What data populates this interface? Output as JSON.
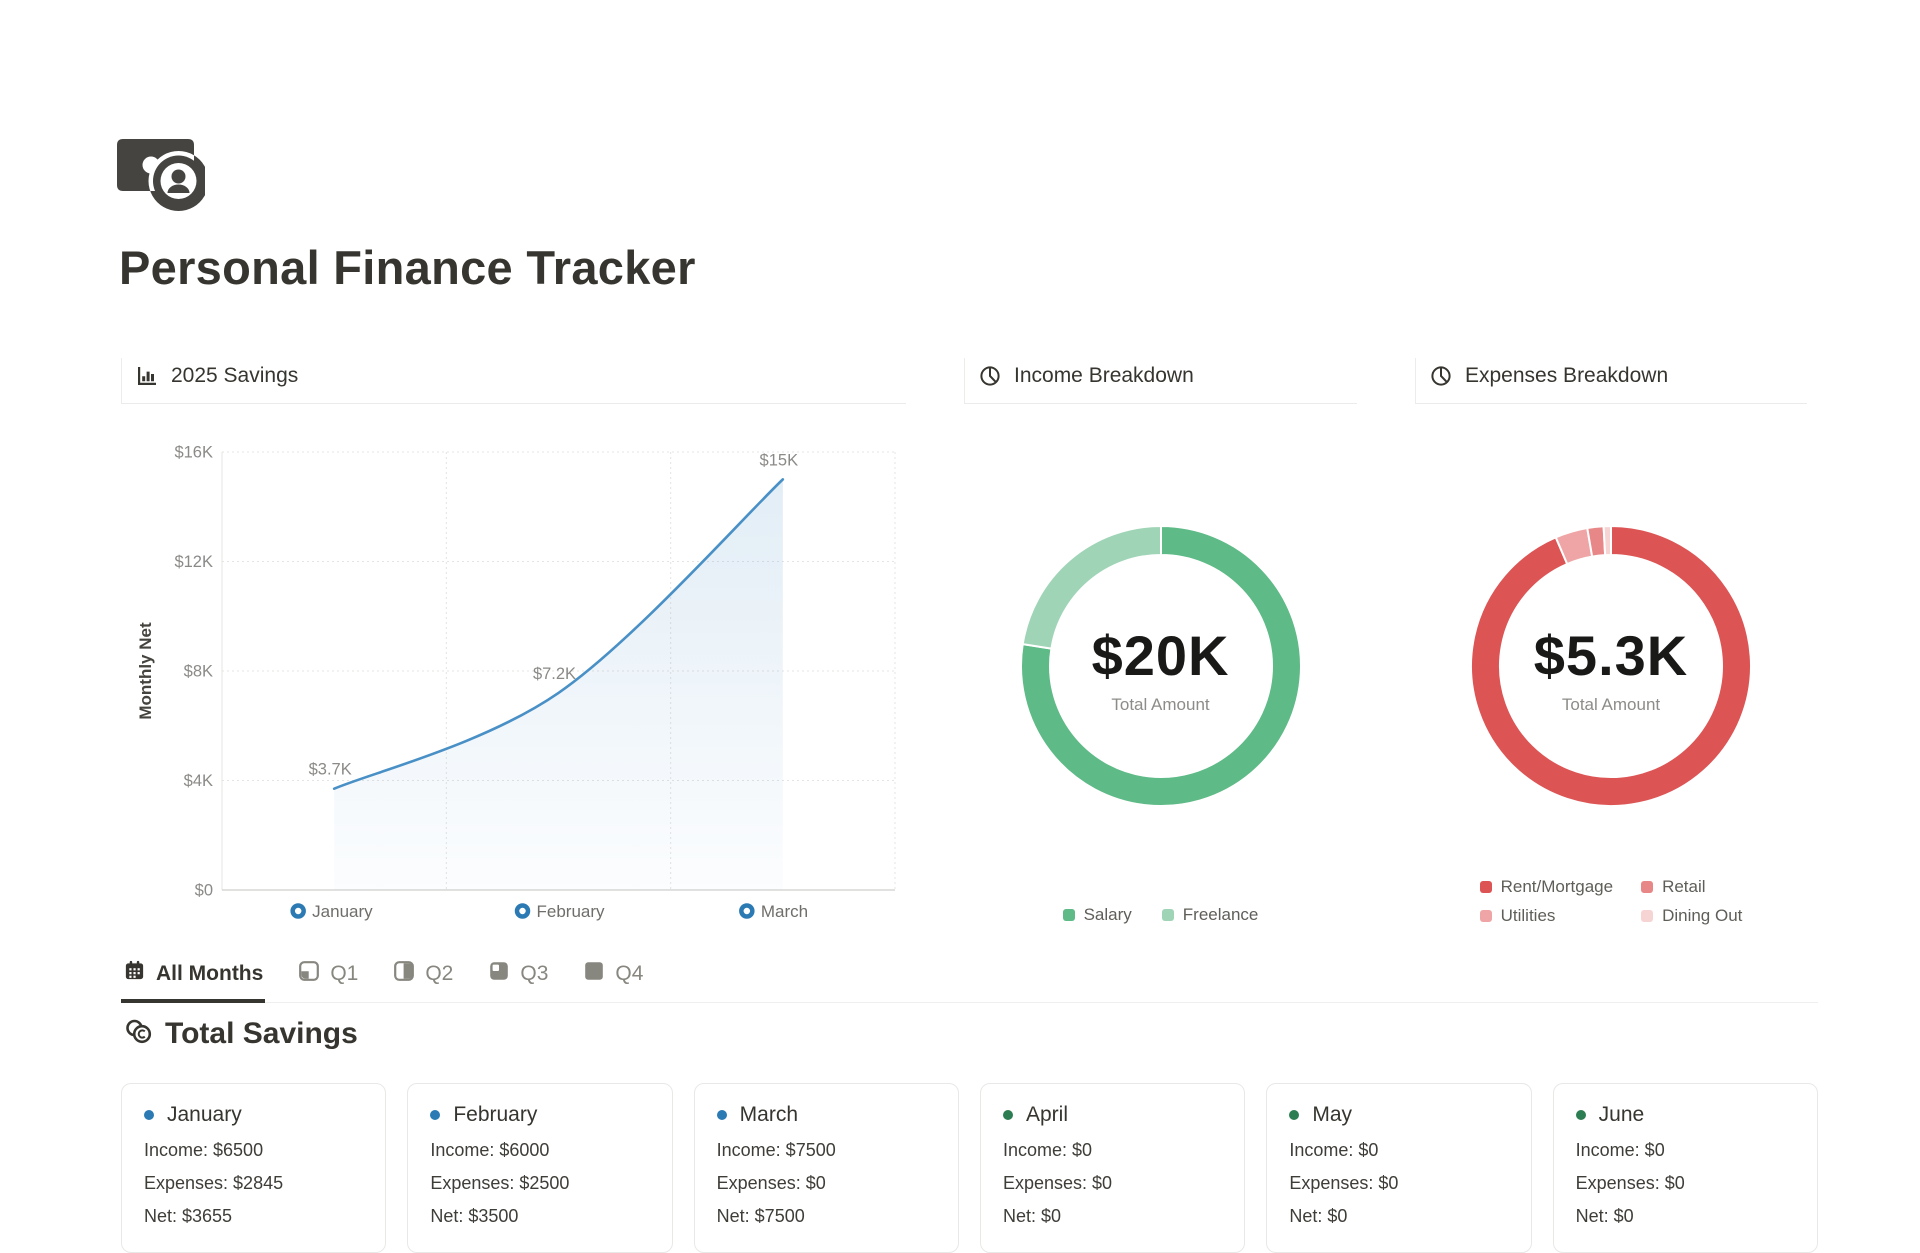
{
  "page": {
    "title": "Personal Finance Tracker",
    "icon": "money-coin-icon"
  },
  "panels": {
    "savings": {
      "title": "2025 Savings",
      "icon": "bar-chart-icon"
    },
    "income": {
      "title": "Income Breakdown",
      "icon": "pie-chart-icon"
    },
    "expenses": {
      "title": "Expenses Breakdown",
      "icon": "pie-chart-icon"
    }
  },
  "chart_data": [
    {
      "type": "line",
      "title": "2025 Savings",
      "ylabel": "Monthly Net",
      "categories": [
        "January",
        "February",
        "March"
      ],
      "values": [
        3700,
        7200,
        15000
      ],
      "point_labels": [
        "$3.7K",
        "$7.2K",
        "$15K"
      ],
      "y_ticks": [
        {
          "value": 16000,
          "label": "$16K"
        },
        {
          "value": 12000,
          "label": "$12K"
        },
        {
          "value": 8000,
          "label": "$8K"
        },
        {
          "value": 4000,
          "label": "$4K"
        },
        {
          "value": 0,
          "label": "$0"
        }
      ],
      "ylim": [
        0,
        16000
      ],
      "grid": "dotted",
      "legend_position": "none",
      "line_color": "#4990c6",
      "marker_color": "#2b7ab3"
    },
    {
      "type": "donut",
      "title": "Income Breakdown",
      "center_value": "$20K",
      "center_label": "Total Amount",
      "legend_position": "bottom",
      "series": [
        {
          "name": "Salary",
          "value": 15500,
          "color": "#5eba86"
        },
        {
          "name": "Freelance",
          "value": 4500,
          "color": "#9fd4b6"
        }
      ]
    },
    {
      "type": "donut",
      "title": "Expenses Breakdown",
      "center_value": "$5.3K",
      "center_label": "Total Amount",
      "legend_position": "bottom",
      "series": [
        {
          "name": "Rent/Mortgage",
          "value": 5000,
          "color": "#dd5454"
        },
        {
          "name": "Utilities",
          "value": 200,
          "color": "#efa5a5"
        },
        {
          "name": "Retail",
          "value": 100,
          "color": "#e88787"
        },
        {
          "name": "Dining Out",
          "value": 45,
          "color": "#f7d4d4"
        }
      ]
    }
  ],
  "tabs": [
    {
      "label": "All Months",
      "icon": "calendar-icon",
      "active": true
    },
    {
      "label": "Q1",
      "icon": "quarter-1-icon",
      "active": false
    },
    {
      "label": "Q2",
      "icon": "quarter-2-icon",
      "active": false
    },
    {
      "label": "Q3",
      "icon": "quarter-3-icon",
      "active": false
    },
    {
      "label": "Q4",
      "icon": "quarter-4-icon",
      "active": false
    }
  ],
  "section": {
    "title": "Total Savings",
    "icon": "coins-icon"
  },
  "months": [
    {
      "name": "January",
      "income": "Income: $6500",
      "expenses": "Expenses: $2845",
      "net": "Net: $3655",
      "marker_color": "#2b7ab3"
    },
    {
      "name": "February",
      "income": "Income: $6000",
      "expenses": "Expenses: $2500",
      "net": "Net: $3500",
      "marker_color": "#2b7ab3"
    },
    {
      "name": "March",
      "income": "Income: $7500",
      "expenses": "Expenses: $0",
      "net": "Net: $7500",
      "marker_color": "#2b7ab3"
    },
    {
      "name": "April",
      "income": "Income: $0",
      "expenses": "Expenses: $0",
      "net": "Net: $0",
      "marker_color": "#2d7d52"
    },
    {
      "name": "May",
      "income": "Income: $0",
      "expenses": "Expenses: $0",
      "net": "Net: $0",
      "marker_color": "#2d7d52"
    },
    {
      "name": "June",
      "income": "Income: $0",
      "expenses": "Expenses: $0",
      "net": "Net: $0",
      "marker_color": "#2d7d52"
    }
  ]
}
